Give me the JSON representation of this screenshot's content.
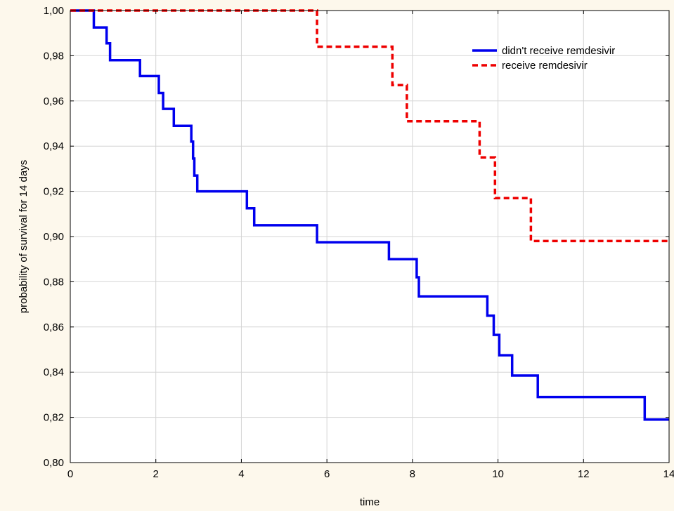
{
  "chart_data": {
    "type": "line",
    "title": "",
    "xlabel": "time",
    "ylabel": "probability of survival for 14 days",
    "xlim": [
      0,
      14
    ],
    "ylim": [
      0.8,
      1.0
    ],
    "x_ticks": [
      "0",
      "2",
      "4",
      "6",
      "8",
      "10",
      "12",
      "14"
    ],
    "y_ticks": [
      "0,80",
      "0,82",
      "0,84",
      "0,86",
      "0,88",
      "0,90",
      "0,92",
      "0,94",
      "0,96",
      "0,98",
      "1,00"
    ],
    "grid": true,
    "legend_position": "top-right",
    "series": [
      {
        "name": "didn't receive remdesivir",
        "color": "#0000ee",
        "style": "solid-step",
        "x": [
          0,
          0.55,
          0.85,
          0.93,
          1.63,
          2.07,
          2.17,
          2.42,
          2.83,
          2.87,
          2.9,
          2.93,
          2.97,
          4.13,
          4.3,
          5.77,
          7.45,
          8.1,
          8.15,
          9.75,
          9.9,
          10.03,
          10.33,
          10.93,
          13.43,
          14.0
        ],
        "y": [
          1.0,
          0.9925,
          0.9855,
          0.978,
          0.971,
          0.9635,
          0.9565,
          0.949,
          0.942,
          0.9345,
          0.927,
          0.927,
          0.92,
          0.9125,
          0.905,
          0.8975,
          0.89,
          0.882,
          0.8735,
          0.865,
          0.8565,
          0.8475,
          0.8385,
          0.829,
          0.819,
          0.819
        ]
      },
      {
        "name": "receive remdesivir",
        "color": "#ee0000",
        "style": "dashed-step",
        "x": [
          0,
          5.77,
          7.53,
          7.87,
          9.57,
          9.93,
          10.77,
          14.0
        ],
        "y": [
          1.0,
          0.984,
          0.967,
          0.951,
          0.935,
          0.917,
          0.898,
          0.898
        ]
      }
    ]
  }
}
